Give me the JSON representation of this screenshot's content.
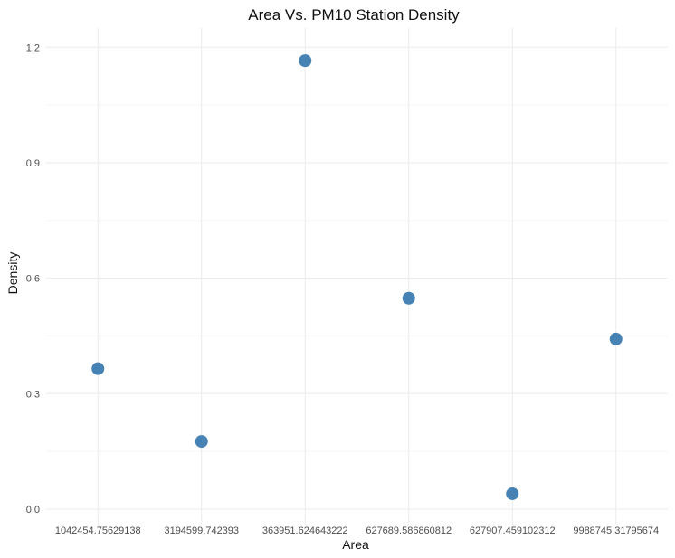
{
  "chart_data": {
    "type": "scatter",
    "title": "Area Vs. PM10 Station Density",
    "xlabel": "Area",
    "ylabel": "Density",
    "x_scale": "categorical",
    "categories": [
      "1042454.75629138",
      "3194599.742393",
      "363951.624643222",
      "627689.586860812",
      "627907.459102312",
      "9988745.31795674"
    ],
    "y_ticks": [
      "0.0",
      "0.3",
      "0.6",
      "0.9",
      "1.2"
    ],
    "ylim": [
      -0.04,
      1.25
    ],
    "grid": true,
    "point_color": "#4682b4",
    "points": [
      {
        "x": "1042454.75629138",
        "y": 0.365
      },
      {
        "x": "3194599.742393",
        "y": 0.176
      },
      {
        "x": "363951.624643222",
        "y": 1.165
      },
      {
        "x": "627689.586860812",
        "y": 0.548
      },
      {
        "x": "627907.459102312",
        "y": 0.04
      },
      {
        "x": "9988745.31795674",
        "y": 0.442
      }
    ]
  }
}
